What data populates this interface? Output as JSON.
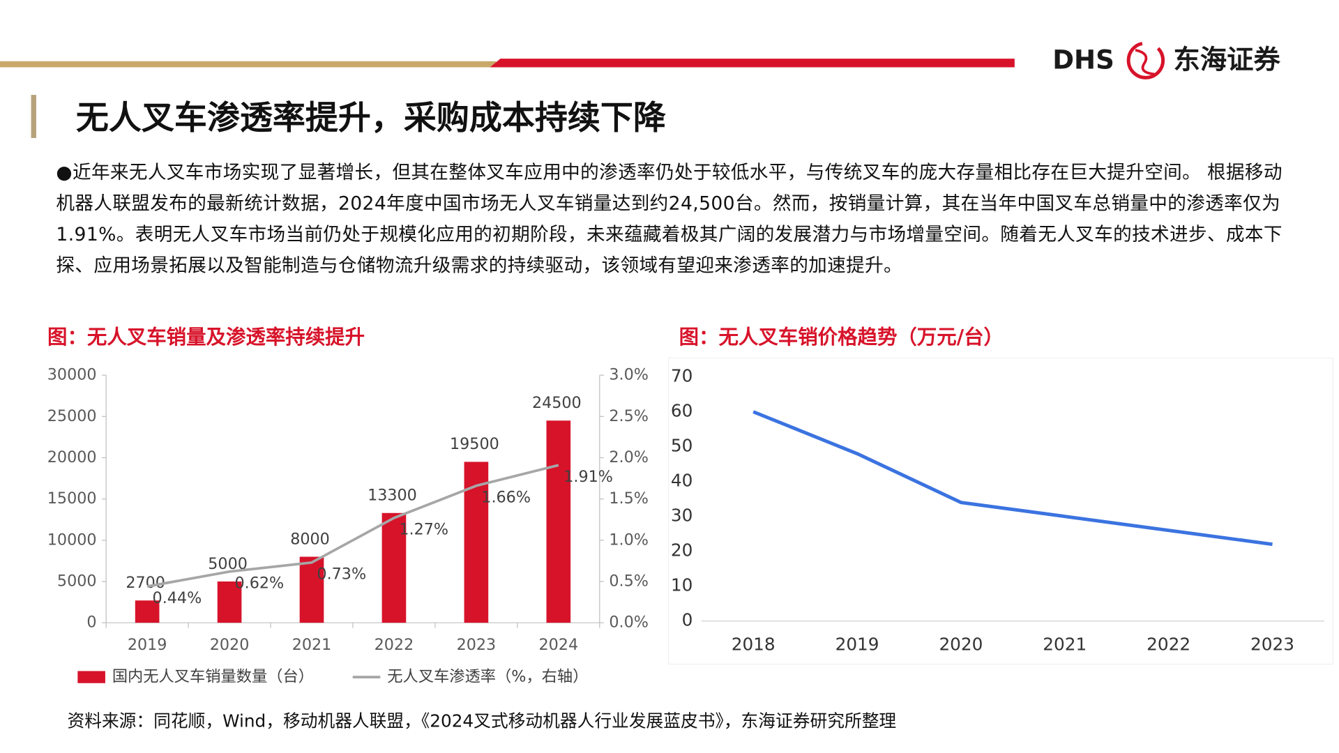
{
  "logo": {
    "brand": "DHS",
    "name": "东海证券"
  },
  "title": "无人叉车渗透率提升，采购成本持续下降",
  "paragraph": "●近年来无人叉车市场实现了显著增长，但其在整体叉车应用中的渗透率仍处于较低水平，与传统叉车的庞大存量相比存在巨大提升空间。 根据移动机器人联盟发布的最新统计数据，2024年度中国市场无人叉车销量达到约24,500台。然而，按销量计算，其在当年中国叉车总销量中的渗透率仅为1.91%。表明无人叉车市场当前仍处于规模化应用的初期阶段，未来蕴藏着极其广阔的发展潜力与市场增量空间。随着无人叉车的技术进步、成本下探、应用场景拓展以及智能制造与仓储物流升级需求的持续驱动，该领域有望迎来渗透率的加速提升。",
  "source": "资料来源：同花顺，Wind，移动机器人联盟，《2024叉式移动机器人行业发展蓝皮书》，东海证券研究所整理",
  "chart_data": [
    {
      "type": "bar",
      "title": "图：无人叉车销量及渗透率持续提升",
      "categories": [
        "2019",
        "2020",
        "2021",
        "2022",
        "2023",
        "2024"
      ],
      "series": [
        {
          "name": "国内无人叉车销量数量（台）",
          "color": "#d7132a",
          "values": [
            2700,
            5000,
            8000,
            13300,
            19500,
            24500
          ]
        },
        {
          "name": "无人叉车渗透率（%，右轴）",
          "color": "#a6a6a6",
          "type": "line",
          "axis": "y2",
          "values": [
            0.44,
            0.62,
            0.73,
            1.27,
            1.66,
            1.91
          ],
          "value_labels": [
            "0.44%",
            "0.62%",
            "0.73%",
            "1.27%",
            "1.66%",
            "1.91%"
          ]
        }
      ],
      "ylim": [
        0,
        30000
      ],
      "yticks": [
        0,
        5000,
        10000,
        15000,
        20000,
        25000,
        30000
      ],
      "y2lim": [
        0,
        3.0
      ],
      "y2ticks": [
        {
          "value": 0,
          "label": "0.0%"
        },
        {
          "value": 0.5,
          "label": "0.5%"
        },
        {
          "value": 1.0,
          "label": "1.0%"
        },
        {
          "value": 1.5,
          "label": "1.5%"
        },
        {
          "value": 2.0,
          "label": "2.0%"
        },
        {
          "value": 2.5,
          "label": "2.5%"
        },
        {
          "value": 3.0,
          "label": "3.0%"
        }
      ],
      "grid": false
    },
    {
      "type": "line",
      "title": "图：无人叉车销价格趋势（万元/台）",
      "categories": [
        "2018",
        "2019",
        "2020",
        "2021",
        "2022",
        "2023"
      ],
      "series": [
        {
          "color": "#3b73e0",
          "values": [
            60,
            48,
            34,
            30,
            26,
            22
          ]
        }
      ],
      "ylim": [
        0,
        70
      ],
      "yticks": [
        0,
        10,
        20,
        30,
        40,
        50,
        60,
        70
      ],
      "grid": false
    }
  ]
}
